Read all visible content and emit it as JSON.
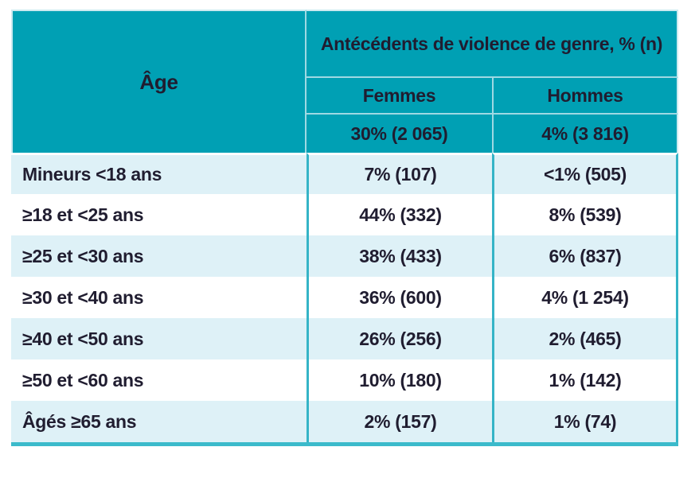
{
  "colors": {
    "header_background": "#00a0b4",
    "row_stripe": "#def1f7",
    "row_plain": "#ffffff",
    "column_divider": "#35b4c7",
    "header_divider": "#9fd9e3",
    "bottom_rule": "#3bbacb",
    "text": "#201d30"
  },
  "table": {
    "age_header": "Âge",
    "group_header": "Antécédents de violence de genre, % (n)",
    "columns": [
      {
        "label": "Femmes",
        "total": "30% (2 065)"
      },
      {
        "label": "Hommes",
        "total": "4% (3 816)"
      }
    ],
    "rows": [
      {
        "age": "Mineurs <18 ans",
        "femmes": "7% (107)",
        "hommes": "<1% (505)"
      },
      {
        "age": "≥18 et <25 ans",
        "femmes": "44% (332)",
        "hommes": "8% (539)"
      },
      {
        "age": "≥25 et <30 ans",
        "femmes": "38% (433)",
        "hommes": "6% (837)"
      },
      {
        "age": "≥30 et <40 ans",
        "femmes": "36% (600)",
        "hommes": "4% (1 254)"
      },
      {
        "age": "≥40 et <50 ans",
        "femmes": "26% (256)",
        "hommes": "2% (465)"
      },
      {
        "age": "≥50 et <60 ans",
        "femmes": "10% (180)",
        "hommes": "1% (142)"
      },
      {
        "age": "Âgés ≥65 ans",
        "femmes": "2% (157)",
        "hommes": "1% (74)"
      }
    ]
  }
}
